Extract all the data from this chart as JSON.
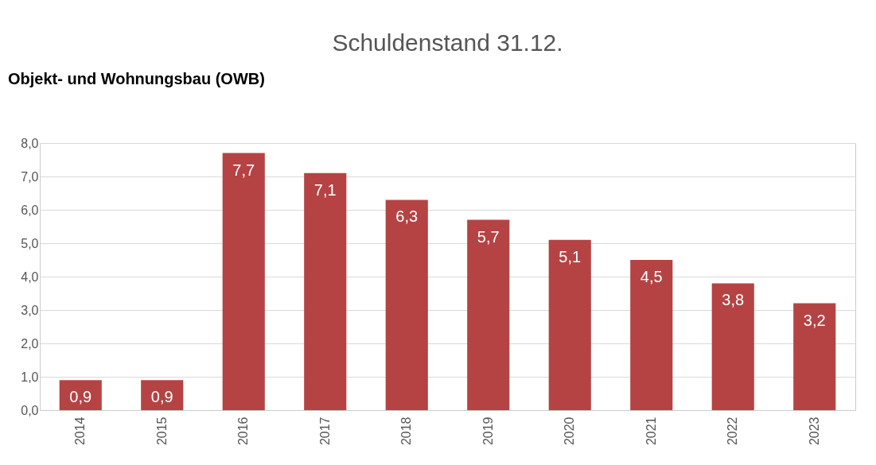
{
  "chart_data": {
    "type": "bar",
    "title": "Schuldenstand 31.12.",
    "annotations": [
      "Objekt- und Wohnungsbau (OWB)"
    ],
    "categories": [
      "2014",
      "2015",
      "2016",
      "2017",
      "2018",
      "2019",
      "2020",
      "2021",
      "2022",
      "2023"
    ],
    "values": [
      0.9,
      0.9,
      7.7,
      7.1,
      6.3,
      5.7,
      5.1,
      4.5,
      3.8,
      3.2
    ],
    "value_labels": [
      "0,9",
      "0,9",
      "7,7",
      "7,1",
      "6,3",
      "5,7",
      "5,1",
      "4,5",
      "3,8",
      "3,2"
    ],
    "color": "#b54343",
    "ylim": [
      0,
      8
    ],
    "yticks": [
      {
        "value": 0,
        "label": "0,0"
      },
      {
        "value": 1,
        "label": "1,0"
      },
      {
        "value": 2,
        "label": "2,0"
      },
      {
        "value": 3,
        "label": "3,0"
      },
      {
        "value": 4,
        "label": "4,0"
      },
      {
        "value": 5,
        "label": "5,0"
      },
      {
        "value": 6,
        "label": "6,0"
      },
      {
        "value": 7,
        "label": "7,0"
      },
      {
        "value": 8,
        "label": "8,0"
      }
    ],
    "grid": "y"
  }
}
